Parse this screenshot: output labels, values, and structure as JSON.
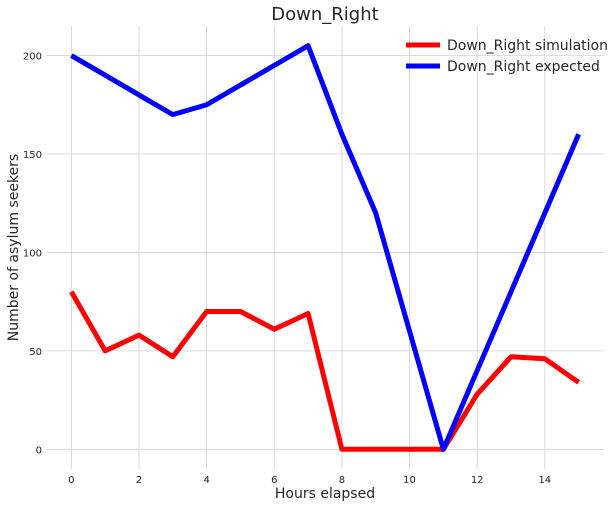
{
  "chart_data": {
    "type": "line",
    "title": "Down_Right",
    "xlabel": "Hours elapsed",
    "ylabel": "Number of asylum seekers",
    "xlim": [
      -0.75,
      15.75
    ],
    "ylim": [
      -10,
      215
    ],
    "x_ticks": [
      0,
      2,
      4,
      6,
      8,
      10,
      12,
      14
    ],
    "y_ticks": [
      0,
      50,
      100,
      150,
      200
    ],
    "grid": true,
    "legend_position": "top-right",
    "x": [
      0,
      1,
      2,
      3,
      4,
      5,
      6,
      7,
      8,
      9,
      10,
      11,
      12,
      13,
      14,
      15
    ],
    "series": [
      {
        "name": "Down_Right simulation",
        "color": "#ff0000",
        "values": [
          80,
          50,
          58,
          47,
          70,
          70,
          61,
          69,
          0,
          0,
          0,
          0,
          28,
          47,
          46,
          34
        ]
      },
      {
        "name": "Down_Right expected",
        "color": "#0000ff",
        "values": [
          200,
          190,
          180,
          170,
          175,
          185,
          195,
          205,
          160,
          120,
          60,
          0,
          40,
          80,
          120,
          160
        ]
      }
    ]
  }
}
